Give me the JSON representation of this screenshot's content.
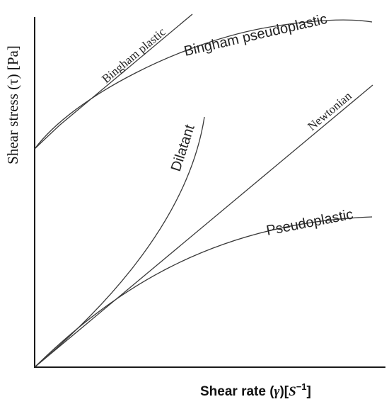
{
  "axes": {
    "y_label": "Shear stress (τ) [Pa]",
    "x_label_main": "Shear rate (",
    "x_label_gamma": "γ",
    "x_label_close": ")",
    "x_label_unit_open": "[",
    "x_label_unit_S": "S",
    "x_label_unit_exp": "−1",
    "x_label_unit_close": "]"
  },
  "curves": {
    "bingham_plastic": "Bingham plastic",
    "bingham_pseudoplastic": "Bingham pseudoplastic",
    "dilatant": "Dilatant",
    "newtonian": "Newtonian",
    "pseudoplastic": "Pseudoplastic"
  }
}
